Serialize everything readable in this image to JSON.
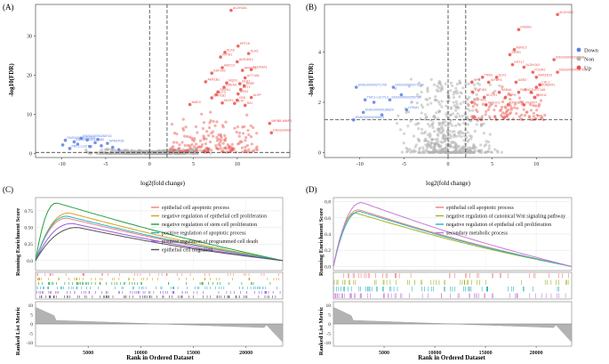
{
  "colors": {
    "down": "#5b7fe6",
    "non": "#b3b3b3",
    "up": "#e8504a",
    "panel_bg": "#ffffff",
    "frame": "#333333",
    "dashed": "#222222"
  },
  "volcanoA": {
    "label": "(A)",
    "xlabel": "log2(fold change)",
    "ylabel": "-log10(FDR)",
    "xticks": [
      "-10",
      "-5",
      "0",
      "5",
      "10"
    ],
    "yticks": [
      "0",
      "10",
      "20",
      "30"
    ],
    "xlim": [
      -13,
      16
    ],
    "ylim": [
      -1,
      38
    ],
    "vlines": [
      0,
      2
    ],
    "hline": 0.3,
    "down_points": [
      [
        -9.6,
        3.4,
        "ENSG00000292801"
      ],
      [
        -7.8,
        3.9,
        "ENSG00000288716"
      ],
      [
        -8.6,
        3.0,
        "ENSG00000271180"
      ],
      [
        -9.1,
        1.3,
        "PBC1-LUCTL2"
      ],
      [
        -4.8,
        2.6,
        "NPM1P28"
      ],
      [
        -7.1,
        3.5,
        ""
      ],
      [
        -6.2,
        2.8,
        ""
      ],
      [
        -5.5,
        2.0,
        ""
      ],
      [
        -8.2,
        2.4,
        ""
      ],
      [
        -4.2,
        1.6,
        ""
      ],
      [
        -3.5,
        1.0,
        ""
      ],
      [
        -6.8,
        1.8,
        ""
      ],
      [
        -9.9,
        2.2,
        ""
      ],
      [
        -5.9,
        3.6,
        ""
      ]
    ],
    "up_points": [
      [
        9.3,
        36.5,
        "ALDH3A1"
      ],
      [
        10.1,
        27.4,
        "KRT16"
      ],
      [
        8.6,
        25.8,
        "KLK6"
      ],
      [
        11.3,
        25.5,
        "KLK5"
      ],
      [
        8.1,
        24.6,
        "KRT81"
      ],
      [
        10.0,
        23.4,
        "AKR1B10"
      ],
      [
        8.3,
        21.9,
        "ABCC3"
      ],
      [
        10.6,
        21.2,
        "AKR1C2"
      ],
      [
        11.6,
        21.4,
        "ALDH3A1"
      ],
      [
        7.1,
        20.5,
        "EDF1A2"
      ],
      [
        10.9,
        19.3,
        "UCT1A6"
      ],
      [
        8.8,
        18.0,
        "NQO1"
      ],
      [
        10.3,
        17.8,
        "CES1"
      ],
      [
        6.4,
        18.3,
        "AKR1B1"
      ],
      [
        10.8,
        17.3,
        "ENSF"
      ],
      [
        8.5,
        16.9,
        "GREN1"
      ],
      [
        10.4,
        16.3,
        "AKT1"
      ],
      [
        7.8,
        15.7,
        "SRXN1"
      ],
      [
        10.1,
        15.2,
        "GPX2"
      ],
      [
        7.6,
        15.0,
        "ELF3"
      ],
      [
        11.6,
        14.3,
        "ALPP"
      ],
      [
        7.1,
        14.2,
        "CYP1B1"
      ],
      [
        10.0,
        13.6,
        "CBS"
      ],
      [
        9.7,
        12.8,
        "HLTF"
      ],
      [
        8.3,
        12.9,
        "MLPH"
      ],
      [
        10.9,
        12.3,
        "RAI"
      ],
      [
        4.6,
        12.5,
        "NMD3"
      ],
      [
        13.7,
        7.7,
        "IMPBB-MMP1"
      ],
      [
        13.9,
        5.3,
        "ENSG00000"
      ]
    ],
    "legend": []
  },
  "volcanoB": {
    "label": "(B)",
    "xlabel": "log2(fold change)",
    "ylabel": "-log10(FDR)",
    "xticks": [
      "-10",
      "-5",
      "0",
      "5",
      "10"
    ],
    "yticks": [
      "0",
      "2",
      "4"
    ],
    "xlim": [
      -14,
      14
    ],
    "ylim": [
      -0.2,
      5.9
    ],
    "vlines": [
      0,
      2
    ],
    "hline": 1.3,
    "down_points": [
      [
        -10.4,
        2.6,
        "ENSG00000271700"
      ],
      [
        -9.4,
        2.1,
        "TMC1-LUCTL2"
      ],
      [
        -9.6,
        1.6,
        "ENSG00000186620"
      ],
      [
        -6.2,
        2.6,
        "ENSG00000273189"
      ],
      [
        -6.6,
        2.1,
        "ENSG00000255750"
      ],
      [
        -4.7,
        1.7,
        "LPKM1"
      ],
      [
        -10.7,
        1.3,
        "ENSG00000290613"
      ],
      [
        -7.5,
        1.5,
        ""
      ],
      [
        -8.4,
        2.0,
        ""
      ],
      [
        -5.3,
        2.3,
        ""
      ]
    ],
    "up_points": [
      [
        12.4,
        5.5,
        "ALDH3A1"
      ],
      [
        8.0,
        4.9,
        "ENSAS"
      ],
      [
        7.5,
        4.1,
        "ASNC3"
      ],
      [
        7.0,
        3.9,
        "ERRG"
      ],
      [
        12.0,
        3.7,
        "ENSG00000290668"
      ],
      [
        7.3,
        3.5,
        "KRT17"
      ],
      [
        8.6,
        3.4,
        "ALDH1A1"
      ],
      [
        9.6,
        3.2,
        "FCGR2"
      ],
      [
        12.4,
        3.2,
        "ENSG00000287022"
      ],
      [
        3.9,
        3.0,
        "TNS3"
      ],
      [
        5.5,
        3.0,
        "ELF3"
      ],
      [
        10.0,
        3.0,
        "AKR1B10"
      ],
      [
        2.7,
        2.8,
        "HPR"
      ],
      [
        4.6,
        2.8,
        "IGFBP4"
      ],
      [
        7.7,
        2.8,
        "AGR2"
      ],
      [
        10.4,
        2.7,
        "CKL1"
      ],
      [
        10.0,
        2.6,
        "BAIOA(MT)"
      ],
      [
        2.8,
        2.4,
        "CYP1B1"
      ],
      [
        5.8,
        2.4,
        "RAB4A"
      ],
      [
        8.0,
        2.4,
        "RAB4C2"
      ],
      [
        9.4,
        2.4,
        "UGT1A6"
      ],
      [
        4.1,
        2.2,
        "NCCR1"
      ],
      [
        6.5,
        2.2,
        "MLPH"
      ],
      [
        9.8,
        2.2,
        "RDH11"
      ],
      [
        2.7,
        2.0,
        "ANTXR1"
      ],
      [
        4.3,
        1.9,
        "AKR1C2"
      ],
      [
        6.8,
        1.9,
        "CPR38"
      ],
      [
        8.6,
        1.9,
        "RHODT"
      ]
    ],
    "legend": [
      {
        "name": "Down",
        "color": "#5b7fe6"
      },
      {
        "name": "Non",
        "color": "#b3b3b3"
      },
      {
        "name": "Up",
        "color": "#e8504a"
      }
    ]
  },
  "gseaC": {
    "label": "(C)",
    "ylabel_top": "Running Enrichment Score",
    "ylabel_bottom": "Ranked List Metric",
    "xlabel": "Rank in Ordered Dataset",
    "xticks": [
      "5000",
      "10000",
      "15000",
      "20000"
    ],
    "yticks_top": [
      "0.0",
      "0.25",
      "0.50",
      "0.75"
    ],
    "yticks_bottom": [
      "10",
      "5",
      "0",
      "-5",
      "-10"
    ],
    "xmax": 23500,
    "es_range": [
      -0.15,
      0.95
    ],
    "series": [
      {
        "name": "epithelial cell apoptotic process",
        "color": "#f08080",
        "peak": 0.64,
        "peak_at": 3000
      },
      {
        "name": "negative regulation of epithelial cell proliferation",
        "color": "#d7a21a",
        "peak": 0.72,
        "peak_at": 3200
      },
      {
        "name": "negative regulation of stem cell proliferation",
        "color": "#1f9e3a",
        "peak": 0.87,
        "peak_at": 2000
      },
      {
        "name": "positive regulation of apoptotic process",
        "color": "#26b3c4",
        "peak": 0.67,
        "peak_at": 3000
      },
      {
        "name": "positive regulation of programmed cell death",
        "color": "#9b59d9",
        "peak": 0.56,
        "peak_at": 3500
      },
      {
        "name": "epithelial cell migration",
        "color": "#555555",
        "peak": 0.5,
        "peak_at": 4000
      }
    ]
  },
  "gseaD": {
    "label": "(D)",
    "ylabel_top": "Running Enrichment Score",
    "ylabel_bottom": "Ranked List Metric",
    "xlabel": "Rank in Ordered Dataset",
    "xticks": [
      "5000",
      "10000",
      "15000",
      "20000"
    ],
    "yticks_top": [
      "0.0",
      "0.2",
      "0.4",
      "0.6",
      "0.8"
    ],
    "yticks_bottom": [
      "10",
      "5",
      "0",
      "-5",
      "-10"
    ],
    "xmax": 23500,
    "es_range": [
      -0.05,
      0.85
    ],
    "series": [
      {
        "name": "epithelial cell apoptotic process",
        "color": "#f08080",
        "peak": 0.7,
        "peak_at": 2500
      },
      {
        "name": "negative regulation of canonical Wnt signaling pathway",
        "color": "#a0b020",
        "peak": 0.66,
        "peak_at": 2200
      },
      {
        "name": "negative regulation of epithelial cell proliferation",
        "color": "#26b3c4",
        "peak": 0.68,
        "peak_at": 2600
      },
      {
        "name": "secondary metabolic process",
        "color": "#c77ad9",
        "peak": 0.79,
        "peak_at": 2800
      }
    ]
  }
}
